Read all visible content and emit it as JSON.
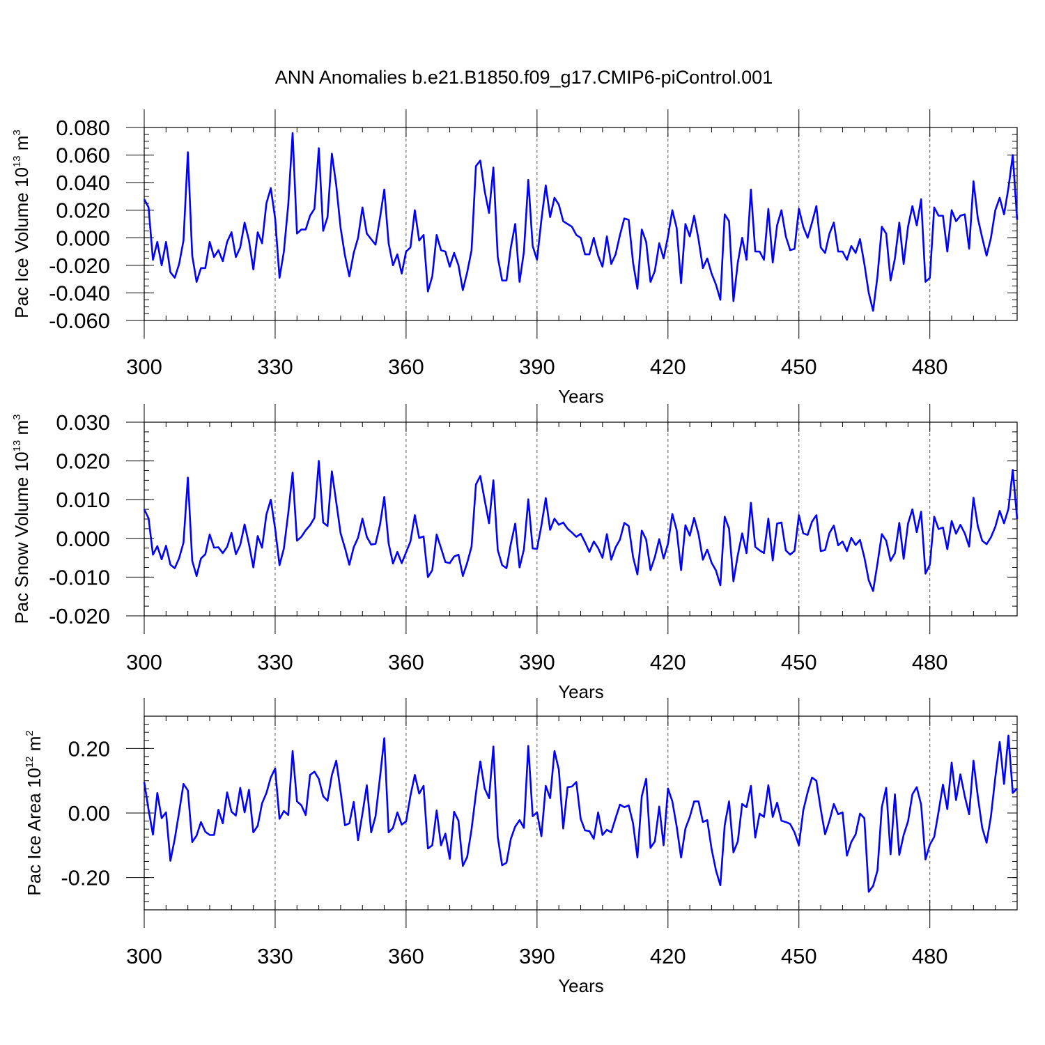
{
  "title": "ANN Anomalies b.e21.B1850.f09_g17.CMIP6-piControl.001",
  "panels": [
    {
      "ylabel_main": "Pac Ice Volume 10",
      "ylabel_exp": "13",
      "ylabel_unit": " m",
      "ylabel_unit_exp": "3",
      "xlabel": "Years"
    },
    {
      "ylabel_main": "Pac Snow Volume 10",
      "ylabel_exp": "13",
      "ylabel_unit": " m",
      "ylabel_unit_exp": "3",
      "xlabel": "Years"
    },
    {
      "ylabel_main": "Pac Ice Area 10",
      "ylabel_exp": "12",
      "ylabel_unit": " m",
      "ylabel_unit_exp": "2",
      "xlabel": "Years"
    }
  ],
  "chart_data": [
    {
      "type": "line",
      "title": "ANN Anomalies b.e21.B1850.f09_g17.CMIP6-piControl.001",
      "xlabel": "Years",
      "ylabel": "Pac Ice Volume 10^13 m^3",
      "xlim": [
        300,
        500
      ],
      "ylim": [
        -0.06,
        0.08
      ],
      "xticks": [
        "300",
        "330",
        "360",
        "390",
        "420",
        "450",
        "480"
      ],
      "yticks": [
        "0.080",
        "0.060",
        "0.040",
        "0.020",
        "0.000",
        "-0.020",
        "-0.040",
        "-0.060"
      ],
      "ytick_values": [
        0.08,
        0.06,
        0.04,
        0.02,
        0.0,
        -0.02,
        -0.04,
        -0.06
      ],
      "x_start": 300,
      "color": "#0000ff",
      "series": [
        {
          "values": [
            0.028,
            0.022,
            -0.016,
            -0.003,
            -0.02,
            -0.003,
            -0.025,
            -0.029,
            -0.019,
            -0.002,
            0.062,
            -0.013,
            -0.032,
            -0.022,
            -0.022,
            -0.003,
            -0.014,
            -0.009,
            -0.017,
            -0.003,
            0.004,
            -0.014,
            -0.007,
            0.011,
            -0.002,
            -0.023,
            0.004,
            -0.004,
            0.025,
            0.036,
            0.014,
            -0.029,
            -0.01,
            0.024,
            0.076,
            0.003,
            0.006,
            0.006,
            0.016,
            0.021,
            0.065,
            0.005,
            0.015,
            0.061,
            0.038,
            0.007,
            -0.013,
            -0.028,
            -0.011,
            0.0,
            0.022,
            0.003,
            -0.001,
            -0.005,
            0.014,
            0.035,
            -0.004,
            -0.02,
            -0.012,
            -0.026,
            -0.01,
            -0.007,
            0.02,
            -0.002,
            0.002,
            -0.039,
            -0.028,
            0.002,
            -0.009,
            -0.01,
            -0.021,
            -0.011,
            -0.02,
            -0.038,
            -0.025,
            -0.009,
            0.052,
            0.056,
            0.034,
            0.018,
            0.051,
            -0.014,
            -0.031,
            -0.031,
            -0.007,
            0.01,
            -0.032,
            -0.01,
            0.042,
            -0.006,
            -0.016,
            0.013,
            0.038,
            0.015,
            0.029,
            0.024,
            0.012,
            0.01,
            0.008,
            0.002,
            0.0,
            -0.012,
            -0.012,
            0.0,
            -0.013,
            -0.021,
            0.001,
            -0.019,
            -0.012,
            0.002,
            0.014,
            0.013,
            -0.018,
            -0.037,
            0.006,
            -0.003,
            -0.032,
            -0.024,
            -0.004,
            -0.015,
            0.001,
            0.02,
            0.007,
            -0.033,
            0.01,
            0.001,
            0.016,
            -0.001,
            -0.022,
            -0.015,
            -0.026,
            -0.034,
            -0.045,
            0.017,
            0.012,
            -0.046,
            -0.018,
            0.0,
            -0.016,
            0.035,
            -0.01,
            -0.01,
            -0.016,
            0.021,
            -0.018,
            0.009,
            0.02,
            0.001,
            -0.009,
            -0.008,
            0.021,
            0.008,
            0.0,
            0.011,
            0.023,
            -0.007,
            -0.011,
            0.003,
            0.011,
            -0.01,
            -0.01,
            -0.016,
            -0.006,
            -0.011,
            -0.001,
            -0.019,
            -0.04,
            -0.053,
            -0.028,
            0.008,
            0.003,
            -0.031,
            -0.015,
            0.011,
            -0.019,
            0.008,
            0.023,
            0.009,
            0.028,
            -0.032,
            -0.029,
            0.022,
            0.016,
            0.016,
            -0.01,
            0.02,
            0.012,
            0.016,
            0.017,
            -0.008,
            0.041,
            0.014,
            0.0,
            -0.013,
            0.0,
            0.02,
            0.029,
            0.017,
            0.036,
            0.06,
            0.013
          ]
        }
      ]
    },
    {
      "type": "line",
      "xlabel": "Years",
      "ylabel": "Pac Snow Volume 10^13 m^3",
      "xlim": [
        300,
        500
      ],
      "ylim": [
        -0.02,
        0.03
      ],
      "xticks": [
        "300",
        "330",
        "360",
        "390",
        "420",
        "450",
        "480"
      ],
      "yticks": [
        "0.030",
        "0.020",
        "0.010",
        "0.000",
        "-0.010",
        "-0.020"
      ],
      "ytick_values": [
        0.03,
        0.02,
        0.01,
        0.0,
        -0.01,
        -0.02
      ],
      "x_start": 300,
      "color": "#0000ff",
      "series": [
        {
          "values": [
            0.0075,
            0.0052,
            -0.0042,
            -0.002,
            -0.0054,
            -0.0019,
            -0.0068,
            -0.0077,
            -0.0051,
            -0.0011,
            0.0157,
            -0.0058,
            -0.0097,
            -0.0052,
            -0.0041,
            0.001,
            -0.0024,
            -0.0023,
            -0.0038,
            -0.0022,
            0.0014,
            -0.0041,
            -0.0017,
            0.0036,
            -0.0015,
            -0.0075,
            0.0006,
            -0.0024,
            0.0062,
            0.01,
            0.0025,
            -0.0069,
            -0.0026,
            0.0065,
            0.017,
            -0.0006,
            0.0004,
            0.0021,
            0.0034,
            0.0053,
            0.02,
            0.0041,
            0.0032,
            0.0173,
            0.0093,
            0.0013,
            -0.0025,
            -0.0068,
            -0.0023,
            0.0002,
            0.0051,
            0.0004,
            -0.0016,
            -0.0014,
            0.0034,
            0.0107,
            -0.0013,
            -0.0065,
            -0.0035,
            -0.0064,
            -0.0036,
            -0.0008,
            0.006,
            0.0001,
            0.0005,
            -0.01,
            -0.0082,
            0.001,
            -0.0025,
            -0.0061,
            -0.0064,
            -0.0047,
            -0.0042,
            -0.0097,
            -0.0063,
            -0.0021,
            0.0139,
            0.0161,
            0.0099,
            0.0039,
            0.015,
            -0.003,
            -0.0069,
            -0.0077,
            -0.0014,
            0.0038,
            -0.0075,
            -0.0028,
            0.0101,
            -0.0026,
            -0.0027,
            0.0033,
            0.0104,
            0.0022,
            0.0051,
            0.0035,
            0.0041,
            0.0025,
            0.0015,
            0.0004,
            0.0012,
            -0.001,
            -0.0035,
            -0.0008,
            -0.0025,
            -0.005,
            0.0011,
            -0.0055,
            -0.0023,
            -0.0003,
            0.004,
            0.0032,
            -0.0048,
            -0.0093,
            0.002,
            -0.0003,
            -0.0082,
            -0.0048,
            -0.0002,
            -0.0052,
            -0.0014,
            0.0063,
            0.0021,
            -0.0082,
            0.0034,
            0.0007,
            0.0053,
            0.0011,
            -0.0055,
            -0.0029,
            -0.0063,
            -0.0083,
            -0.0121,
            0.0056,
            0.0025,
            -0.0111,
            -0.0043,
            0.0013,
            -0.0038,
            0.0092,
            -0.0022,
            -0.0031,
            -0.0038,
            0.0051,
            -0.0057,
            0.0038,
            0.0041,
            -0.0031,
            -0.0042,
            -0.0032,
            0.006,
            0.0013,
            0.0009,
            0.0043,
            0.006,
            -0.0033,
            -0.003,
            0.0014,
            0.0033,
            -0.0018,
            -0.0008,
            -0.0033,
            0.0001,
            -0.0017,
            -0.0004,
            -0.0049,
            -0.0108,
            -0.0136,
            -0.0065,
            0.0011,
            -0.0006,
            -0.0058,
            -0.0038,
            0.004,
            -0.0053,
            0.0038,
            0.0075,
            0.0016,
            0.0069,
            -0.0091,
            -0.0068,
            0.0056,
            0.0024,
            0.0028,
            -0.0028,
            0.0045,
            0.0012,
            0.0035,
            0.0013,
            -0.0021,
            0.0105,
            0.0031,
            -0.0006,
            -0.0015,
            0.0003,
            0.003,
            0.0071,
            0.0039,
            0.0076,
            0.0177,
            0.005
          ]
        }
      ]
    },
    {
      "type": "line",
      "xlabel": "Years",
      "ylabel": "Pac Ice Area 10^12 m^2",
      "xlim": [
        300,
        500
      ],
      "ylim": [
        -0.3,
        0.3
      ],
      "xticks": [
        "300",
        "330",
        "360",
        "390",
        "420",
        "450",
        "480"
      ],
      "yticks": [
        "0.20",
        "0.00",
        "-0.20"
      ],
      "ytick_values": [
        0.2,
        0.0,
        -0.2
      ],
      "x_start": 300,
      "color": "#0000ff",
      "series": [
        {
          "values": [
            0.096,
            0.01,
            -0.067,
            0.062,
            -0.016,
            0.002,
            -0.148,
            -0.08,
            0.003,
            0.09,
            0.07,
            -0.09,
            -0.07,
            -0.028,
            -0.058,
            -0.068,
            -0.068,
            0.01,
            -0.032,
            0.064,
            0.004,
            -0.008,
            0.078,
            0.002,
            0.072,
            -0.06,
            -0.04,
            0.03,
            0.062,
            0.11,
            0.138,
            -0.018,
            0.006,
            -0.006,
            0.192,
            0.036,
            0.024,
            -0.006,
            0.118,
            0.128,
            0.106,
            0.052,
            0.038,
            0.118,
            0.162,
            0.066,
            -0.038,
            -0.032,
            0.034,
            -0.084,
            -0.002,
            0.086,
            -0.06,
            -0.01,
            0.108,
            0.232,
            -0.06,
            -0.046,
            0.002,
            -0.036,
            -0.026,
            0.054,
            0.118,
            0.06,
            0.084,
            -0.11,
            -0.1,
            0.008,
            -0.1,
            -0.064,
            -0.142,
            0.004,
            -0.024,
            -0.164,
            -0.136,
            -0.05,
            0.06,
            0.16,
            0.076,
            0.046,
            0.206,
            -0.074,
            -0.162,
            -0.154,
            -0.08,
            -0.042,
            -0.022,
            -0.046,
            0.208,
            -0.01,
            0.002,
            -0.072,
            0.084,
            0.046,
            0.192,
            0.134,
            -0.048,
            0.08,
            0.082,
            0.096,
            -0.018,
            -0.054,
            -0.056,
            -0.08,
            0.002,
            -0.068,
            -0.052,
            -0.06,
            -0.016,
            0.026,
            0.018,
            0.024,
            -0.032,
            -0.138,
            0.052,
            0.106,
            -0.108,
            -0.088,
            0.02,
            -0.1,
            0.076,
            0.036,
            -0.042,
            -0.138,
            -0.048,
            -0.012,
            0.036,
            0.036,
            -0.028,
            -0.022,
            -0.112,
            -0.178,
            -0.224,
            -0.038,
            0.036,
            -0.122,
            -0.088,
            0.028,
            0.018,
            0.084,
            -0.076,
            -0.002,
            -0.012,
            0.086,
            -0.012,
            0.032,
            -0.024,
            -0.028,
            -0.034,
            -0.06,
            -0.1,
            0.008,
            0.064,
            0.11,
            0.1,
            0.012,
            -0.066,
            -0.024,
            0.028,
            -0.004,
            0.002,
            -0.132,
            -0.09,
            -0.066,
            -0.002,
            -0.016,
            -0.244,
            -0.226,
            -0.178,
            0.018,
            0.078,
            -0.128,
            0.058,
            -0.13,
            -0.068,
            -0.026,
            0.058,
            0.08,
            0.026,
            -0.144,
            -0.098,
            -0.074,
            0.004,
            0.088,
            0.012,
            0.156,
            0.04,
            0.12,
            0.052,
            -0.004,
            0.162,
            0.05,
            -0.046,
            -0.092,
            -0.01,
            0.11,
            0.22,
            0.09,
            0.24,
            0.062,
            0.076
          ]
        }
      ]
    }
  ]
}
